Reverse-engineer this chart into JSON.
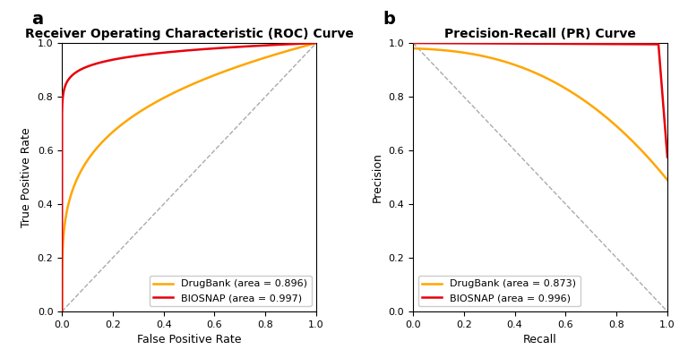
{
  "roc_title": "Receiver Operating Characteristic (ROC) Curve",
  "pr_title": "Precision-Recall (PR) Curve",
  "roc_xlabel": "False Positive Rate",
  "roc_ylabel": "True Positive Rate",
  "pr_xlabel": "Recall",
  "pr_ylabel": "Precision",
  "biosnap_color": "#E8000B",
  "drugbank_color": "#FFA500",
  "diag_color": "#AAAAAA",
  "label_biosnap_roc": "BIOSNAP (area = 0.997)",
  "label_drugbank_roc": "DrugBank (area = 0.896)",
  "label_biosnap_pr": "BIOSNAP (area = 0.996)",
  "label_drugbank_pr": "DrugBank (area = 0.873)",
  "panel_a": "a",
  "panel_b": "b",
  "bg_color": "#ffffff",
  "line_width": 1.8,
  "title_fontsize": 10,
  "axis_fontsize": 9,
  "legend_fontsize": 8,
  "tick_fontsize": 8
}
